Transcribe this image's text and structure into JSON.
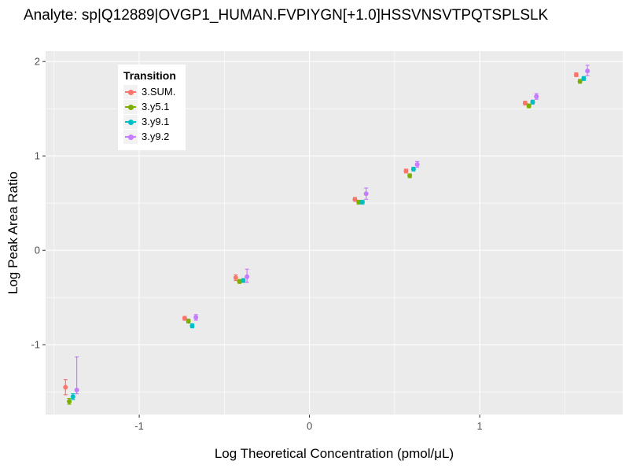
{
  "chart_data": {
    "type": "scatter",
    "title": "Analyte: sp|Q12889|OVGP1_HUMAN.FVPIYGN[+1.0]HSSVNSVTPQTSPLSLK",
    "xlabel": "Log Theoretical Concentration (pmol/μL)",
    "ylabel": "Log Peak Area Ratio",
    "legend_title": "Transition",
    "legend_position": "inside-top-left",
    "grid": true,
    "panel_bg": "#EBEBEB",
    "grid_color": "#FFFFFF",
    "tick_label_color": "#4D4D4D",
    "xlim": [
      -1.55,
      1.84
    ],
    "ylim": [
      -1.74,
      2.11
    ],
    "xticks": [
      -1,
      0,
      1
    ],
    "yticks": [
      -1,
      0,
      1,
      2
    ],
    "x_minor": [
      -1.5,
      -0.5,
      0.5,
      1.5
    ],
    "y_minor": [
      -1.5,
      -0.5,
      0.5,
      1.5
    ],
    "x": [
      -1.4,
      -0.7,
      -0.4,
      0.3,
      0.6,
      1.3,
      1.6
    ],
    "dodge": [
      -0.033,
      -0.011,
      0.011,
      0.033
    ],
    "series": [
      {
        "name": "3.SUM.",
        "color": "#F8766D",
        "values": [
          -1.45,
          -0.72,
          -0.29,
          0.54,
          0.84,
          1.56,
          1.86
        ],
        "err_lo": [
          -1.53,
          -0.74,
          -0.32,
          0.52,
          0.82,
          1.54,
          1.84
        ],
        "err_hi": [
          -1.37,
          -0.7,
          -0.26,
          0.56,
          0.86,
          1.58,
          1.88
        ]
      },
      {
        "name": "3.y5.1",
        "color": "#7CAE00",
        "values": [
          -1.6,
          -0.75,
          -0.33,
          0.51,
          0.79,
          1.53,
          1.79
        ],
        "err_lo": [
          -1.63,
          -0.77,
          -0.35,
          0.49,
          0.77,
          1.51,
          1.77
        ],
        "err_hi": [
          -1.57,
          -0.73,
          -0.31,
          0.53,
          0.81,
          1.55,
          1.81
        ]
      },
      {
        "name": "3.y9.1",
        "color": "#00BFC4",
        "values": [
          -1.55,
          -0.8,
          -0.32,
          0.51,
          0.86,
          1.57,
          1.82
        ],
        "err_lo": [
          -1.58,
          -0.82,
          -0.34,
          0.49,
          0.84,
          1.55,
          1.8
        ],
        "err_hi": [
          -1.52,
          -0.78,
          -0.3,
          0.53,
          0.88,
          1.59,
          1.84
        ]
      },
      {
        "name": "3.y9.2",
        "color": "#C77CFF",
        "values": [
          -1.48,
          -0.71,
          -0.28,
          0.6,
          0.91,
          1.63,
          1.9
        ],
        "err_lo": [
          -1.52,
          -0.74,
          -0.34,
          0.54,
          0.88,
          1.6,
          1.85
        ],
        "err_hi": [
          -1.13,
          -0.68,
          -0.2,
          0.66,
          0.94,
          1.66,
          1.96
        ]
      }
    ]
  }
}
